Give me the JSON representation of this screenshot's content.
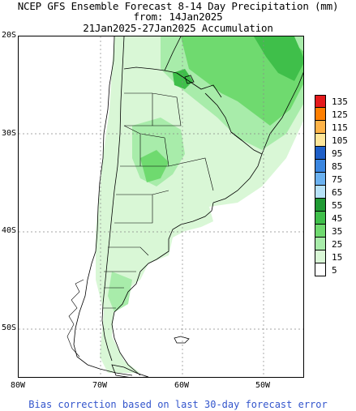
{
  "title": {
    "line1": "NCEP GFS Ensemble Forecast 8-14 Day Precipitation (mm)",
    "line2": "from: 14Jan2025",
    "line3": "21Jan2025-27Jan2025 Accumulation"
  },
  "axes": {
    "lat_labels": [
      "20S",
      "30S",
      "40S",
      "50S"
    ],
    "lon_labels": [
      "80W",
      "70W",
      "60W",
      "50W"
    ]
  },
  "legend": {
    "labels": [
      "135",
      "125",
      "115",
      "105",
      "95",
      "85",
      "75",
      "65",
      "55",
      "45",
      "35",
      "25",
      "15",
      "5"
    ],
    "colors": [
      "#e41a1c",
      "#ff7f00",
      "#ffb347",
      "#ffe699",
      "#1e5fc8",
      "#3a86e0",
      "#6ab1f0",
      "#b7e2f8",
      "#1f9a33",
      "#3fbf4a",
      "#6fda6f",
      "#a8ecaa",
      "#d9f7d6",
      "#ffffff"
    ]
  },
  "map": {
    "region": "South America (Southern Cone)",
    "lon_range": [
      -80,
      -45
    ],
    "lat_range": [
      -55,
      -20
    ],
    "grid": true,
    "colors": {
      "land": "#ffffff",
      "light_green": "#d9f7d6",
      "mid_green": "#a8ecaa",
      "green": "#6fda6f",
      "dark_green": "#3fbf4a",
      "border": "#000000",
      "grid": "#888888"
    }
  },
  "footer": {
    "note": "Bias correction based on last 30-day forecast error"
  }
}
